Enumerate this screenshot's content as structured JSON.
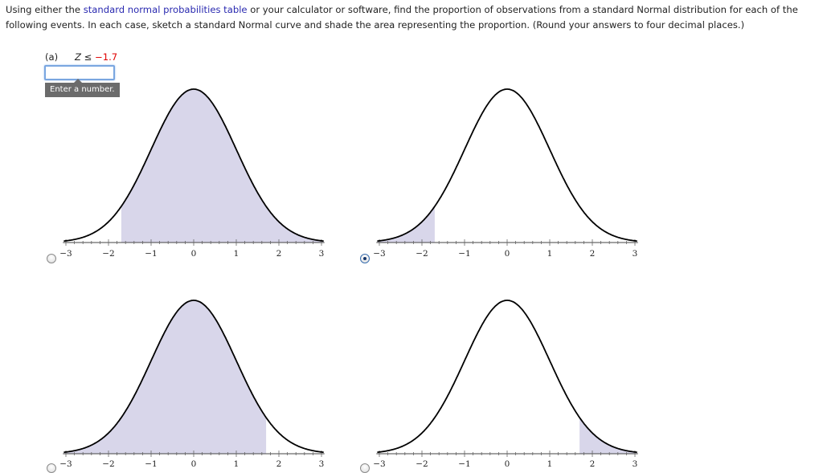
{
  "prompt": {
    "before_link": "Using either the ",
    "link": "standard normal probabilities table",
    "after_link": " or your calculator or software, find the proportion of observations from a standard Normal distribution for each of the following events. In each case, sketch a standard Normal curve and shade the area representing the proportion. (Round your answers to four decimal places.)"
  },
  "part": {
    "label": "(a)",
    "condition_var": "Z ≤ ",
    "condition_value": "−1.7",
    "input_value": "",
    "tooltip": "Enter a number."
  },
  "colors": {
    "shade": "#d8d6ea",
    "link": "#2a2ab0",
    "red": "#e00000"
  },
  "axis_labels": [
    "−3",
    "−2",
    "−1",
    "0",
    "1",
    "2",
    "3"
  ],
  "options": [
    {
      "name": "option-1",
      "shade_from": -1.7,
      "shade_to": 4,
      "selected": false
    },
    {
      "name": "option-2",
      "shade_from": -4,
      "shade_to": -1.7,
      "selected": true
    },
    {
      "name": "option-3",
      "shade_from": -4,
      "shade_to": 1.7,
      "selected": false
    },
    {
      "name": "option-4",
      "shade_from": 1.7,
      "shade_to": 4,
      "selected": false
    }
  ]
}
